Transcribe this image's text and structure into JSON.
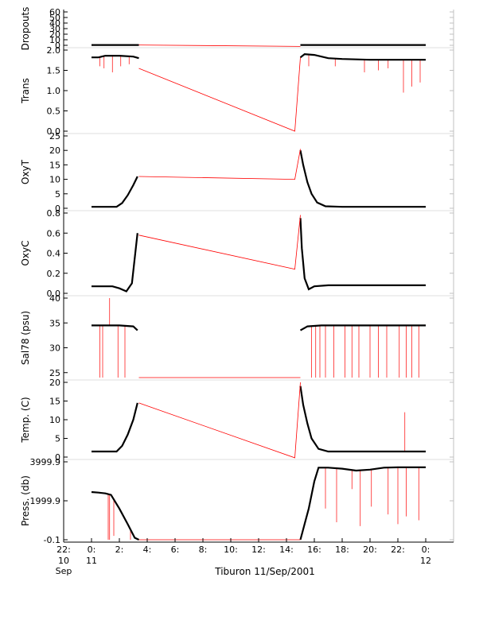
{
  "figure": {
    "caption": "Tiburon 11/Sep/2001",
    "colors": {
      "data": "#000000",
      "spikes": "#ff0000",
      "axis": "#000000",
      "minor_tick": "#c0c0c0"
    }
  },
  "chart_data": [
    {
      "type": "line",
      "ylabel": "Dropouts",
      "ylim": [
        0,
        60
      ],
      "yticks": [
        0,
        10,
        20,
        30,
        40,
        50,
        60
      ],
      "series": [
        {
          "color": "black",
          "values": [
            [
              0.0,
              0.5
            ],
            [
              3.4,
              0.5
            ]
          ]
        },
        {
          "color": "black",
          "values": [
            [
              15.0,
              0.5
            ],
            [
              24.0,
              0.5
            ]
          ]
        },
        {
          "color": "red",
          "values": [
            [
              3.4,
              0.5
            ],
            [
              15.0,
              -2.0
            ]
          ]
        }
      ]
    },
    {
      "type": "line",
      "ylabel": "Trans",
      "ylim": [
        0,
        2
      ],
      "yticks": [
        0.0,
        0.5,
        1.0,
        1.5,
        2.0
      ],
      "ytick_decimals": 1,
      "series": [
        {
          "color": "black",
          "values": [
            [
              0.0,
              1.82
            ],
            [
              0.5,
              1.82
            ],
            [
              1.0,
              1.86
            ],
            [
              2.0,
              1.86
            ],
            [
              3.0,
              1.84
            ],
            [
              3.4,
              1.8
            ]
          ]
        },
        {
          "color": "black",
          "values": [
            [
              15.0,
              1.82
            ],
            [
              15.3,
              1.9
            ],
            [
              16.0,
              1.88
            ],
            [
              17.0,
              1.8
            ],
            [
              18.0,
              1.78
            ],
            [
              20.0,
              1.76
            ],
            [
              22.0,
              1.76
            ],
            [
              24.0,
              1.76
            ]
          ]
        },
        {
          "color": "red",
          "values": [
            [
              3.4,
              1.55
            ],
            [
              14.6,
              0.0
            ],
            [
              15.0,
              1.82
            ]
          ]
        }
      ],
      "spikes": [
        [
          0.6,
          1.6
        ],
        [
          0.9,
          1.55
        ],
        [
          1.5,
          1.45
        ],
        [
          2.1,
          1.6
        ],
        [
          2.7,
          1.65
        ],
        [
          15.6,
          1.6
        ],
        [
          17.5,
          1.6
        ],
        [
          19.6,
          1.45
        ],
        [
          20.6,
          1.5
        ],
        [
          21.3,
          1.55
        ],
        [
          22.4,
          0.95
        ],
        [
          23.0,
          1.1
        ],
        [
          23.6,
          1.2
        ]
      ]
    },
    {
      "type": "line",
      "ylabel": "OxyT",
      "ylim": [
        0,
        25
      ],
      "yticks": [
        0,
        5,
        10,
        15,
        20,
        25
      ],
      "series": [
        {
          "color": "black",
          "values": [
            [
              0.0,
              0.5
            ],
            [
              1.8,
              0.5
            ],
            [
              2.2,
              1.8
            ],
            [
              2.6,
              4.5
            ],
            [
              3.0,
              8.0
            ],
            [
              3.3,
              11.0
            ]
          ]
        },
        {
          "color": "black",
          "values": [
            [
              15.0,
              20.0
            ],
            [
              15.2,
              15.0
            ],
            [
              15.5,
              9.0
            ],
            [
              15.8,
              5.0
            ],
            [
              16.2,
              2.0
            ],
            [
              16.8,
              0.7
            ],
            [
              18.0,
              0.5
            ],
            [
              24.0,
              0.5
            ]
          ]
        },
        {
          "color": "red",
          "values": [
            [
              3.4,
              11.0
            ],
            [
              14.6,
              10.0
            ],
            [
              15.0,
              20.5
            ]
          ]
        }
      ]
    },
    {
      "type": "line",
      "ylabel": "OxyC",
      "ylim": [
        0,
        0.8
      ],
      "yticks": [
        0.0,
        0.2,
        0.4,
        0.6,
        0.8
      ],
      "ytick_decimals": 1,
      "series": [
        {
          "color": "black",
          "values": [
            [
              0.0,
              0.07
            ],
            [
              1.5,
              0.07
            ],
            [
              2.0,
              0.05
            ],
            [
              2.5,
              0.02
            ],
            [
              2.9,
              0.1
            ],
            [
              3.1,
              0.35
            ],
            [
              3.3,
              0.6
            ]
          ]
        },
        {
          "color": "black",
          "values": [
            [
              15.0,
              0.75
            ],
            [
              15.1,
              0.45
            ],
            [
              15.3,
              0.15
            ],
            [
              15.6,
              0.04
            ],
            [
              16.0,
              0.07
            ],
            [
              17.0,
              0.08
            ],
            [
              24.0,
              0.08
            ]
          ]
        },
        {
          "color": "red",
          "values": [
            [
              3.4,
              0.58
            ],
            [
              14.6,
              0.24
            ],
            [
              15.0,
              0.78
            ]
          ]
        }
      ]
    },
    {
      "type": "line",
      "ylabel": "Sal78 (psu)",
      "ylim": [
        24,
        40
      ],
      "yticks": [
        25,
        30,
        35,
        40
      ],
      "series": [
        {
          "color": "black",
          "values": [
            [
              0.0,
              34.5
            ],
            [
              2.0,
              34.5
            ],
            [
              3.0,
              34.3
            ],
            [
              3.3,
              33.5
            ]
          ]
        },
        {
          "color": "black",
          "values": [
            [
              15.0,
              33.5
            ],
            [
              15.5,
              34.3
            ],
            [
              16.5,
              34.5
            ],
            [
              24.0,
              34.5
            ]
          ]
        },
        {
          "color": "red",
          "values": [
            [
              3.4,
              24.0
            ],
            [
              15.0,
              24.0
            ]
          ]
        }
      ],
      "spikes": [
        [
          0.6,
          24.0
        ],
        [
          0.8,
          24.0
        ],
        [
          1.3,
          40.0
        ],
        [
          1.9,
          24.0
        ],
        [
          2.4,
          24.0
        ],
        [
          15.8,
          24.0
        ],
        [
          16.1,
          24.0
        ],
        [
          16.4,
          24.0
        ],
        [
          16.8,
          24.0
        ],
        [
          17.4,
          24.0
        ],
        [
          18.2,
          24.0
        ],
        [
          18.7,
          24.0
        ],
        [
          19.2,
          24.0
        ],
        [
          20.0,
          24.0
        ],
        [
          20.6,
          24.0
        ],
        [
          21.2,
          24.0
        ],
        [
          22.1,
          24.0
        ],
        [
          22.6,
          24.0
        ],
        [
          23.0,
          24.0
        ],
        [
          23.5,
          24.0
        ]
      ]
    },
    {
      "type": "line",
      "ylabel": "Temp. (C)",
      "ylim": [
        0,
        20
      ],
      "yticks": [
        0,
        5,
        10,
        15,
        20
      ],
      "series": [
        {
          "color": "black",
          "values": [
            [
              0.0,
              1.5
            ],
            [
              1.8,
              1.5
            ],
            [
              2.2,
              3.0
            ],
            [
              2.6,
              6.0
            ],
            [
              3.0,
              10.0
            ],
            [
              3.3,
              14.5
            ]
          ]
        },
        {
          "color": "black",
          "values": [
            [
              15.0,
              19.0
            ],
            [
              15.2,
              14.0
            ],
            [
              15.5,
              9.0
            ],
            [
              15.8,
              5.0
            ],
            [
              16.3,
              2.2
            ],
            [
              17.0,
              1.5
            ],
            [
              24.0,
              1.5
            ]
          ]
        },
        {
          "color": "red",
          "values": [
            [
              3.4,
              14.5
            ],
            [
              14.6,
              -0.2
            ],
            [
              15.0,
              20.0
            ]
          ]
        }
      ],
      "spikes": [
        [
          22.5,
          12.0
        ]
      ]
    },
    {
      "type": "line",
      "ylabel": "Press. (db)",
      "ylim": [
        -0.1,
        3999.9
      ],
      "yticks": [
        -0.1,
        1999.9,
        3999.9
      ],
      "ytick_decimals": 1,
      "series": [
        {
          "color": "black",
          "values": [
            [
              0.0,
              2450.0
            ],
            [
              0.5,
              2420.0
            ],
            [
              1.0,
              2380.0
            ],
            [
              1.4,
              2300.0
            ],
            [
              2.0,
              1600.0
            ],
            [
              2.6,
              800.0
            ],
            [
              3.1,
              100.0
            ],
            [
              3.4,
              0.0
            ]
          ]
        },
        {
          "color": "black",
          "values": [
            [
              15.0,
              0.0
            ],
            [
              15.6,
              1600.0
            ],
            [
              16.0,
              3000.0
            ],
            [
              16.3,
              3700.0
            ],
            [
              17.0,
              3700.0
            ],
            [
              18.0,
              3650.0
            ],
            [
              19.0,
              3550.0
            ],
            [
              20.0,
              3600.0
            ],
            [
              21.0,
              3700.0
            ],
            [
              22.0,
              3720.0
            ],
            [
              24.0,
              3720.0
            ]
          ]
        },
        {
          "color": "red",
          "values": [
            [
              3.4,
              0.0
            ],
            [
              15.0,
              0.0
            ]
          ]
        }
      ],
      "spikes": [
        [
          1.2,
          -0.1
        ],
        [
          1.3,
          -0.1
        ],
        [
          1.6,
          200.0
        ],
        [
          2.8,
          -0.1
        ],
        [
          16.8,
          1600.0
        ],
        [
          17.6,
          900.0
        ],
        [
          18.7,
          2600.0
        ],
        [
          19.3,
          700.0
        ],
        [
          20.1,
          1700.0
        ],
        [
          21.3,
          1300.0
        ],
        [
          22.0,
          800.0
        ],
        [
          22.6,
          1200.0
        ],
        [
          23.5,
          1000.0
        ]
      ]
    }
  ],
  "x_axis": {
    "range": [
      -2,
      26
    ],
    "ticks": [
      {
        "x": -2,
        "label": "22:",
        "sub": "10",
        "sub2": "Sep"
      },
      {
        "x": 0,
        "label": "0:",
        "sub": "11",
        "sub2": ""
      },
      {
        "x": 2,
        "label": "2:",
        "sub": "",
        "sub2": ""
      },
      {
        "x": 4,
        "label": "4:",
        "sub": "",
        "sub2": ""
      },
      {
        "x": 6,
        "label": "6:",
        "sub": "",
        "sub2": ""
      },
      {
        "x": 8,
        "label": "8:",
        "sub": "",
        "sub2": ""
      },
      {
        "x": 10,
        "label": "10:",
        "sub": "",
        "sub2": ""
      },
      {
        "x": 12,
        "label": "12:",
        "sub": "",
        "sub2": ""
      },
      {
        "x": 14,
        "label": "14:",
        "sub": "",
        "sub2": ""
      },
      {
        "x": 16,
        "label": "16:",
        "sub": "",
        "sub2": ""
      },
      {
        "x": 18,
        "label": "18:",
        "sub": "",
        "sub2": ""
      },
      {
        "x": 20,
        "label": "20:",
        "sub": "",
        "sub2": ""
      },
      {
        "x": 22,
        "label": "22:",
        "sub": "",
        "sub2": ""
      },
      {
        "x": 24,
        "label": "0:",
        "sub": "12",
        "sub2": ""
      }
    ]
  }
}
